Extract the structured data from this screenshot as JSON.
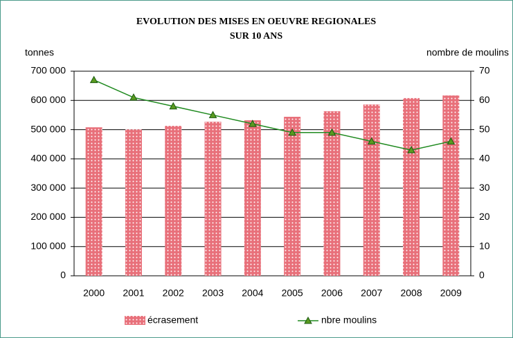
{
  "chart_data": {
    "type": "bar_line",
    "title": [
      "EVOLUTION DES MISES EN OEUVRE REGIONALES",
      "SUR 10 ANS"
    ],
    "y_label": "tonnes",
    "y2_label": "nombre de moulins",
    "categories": [
      "2000",
      "2001",
      "2002",
      "2003",
      "2004",
      "2005",
      "2006",
      "2007",
      "2008",
      "2009"
    ],
    "series": [
      {
        "name": "écrasement",
        "type": "bar",
        "color": "#e8707a",
        "values": [
          508000,
          501000,
          513000,
          527000,
          532000,
          544000,
          563000,
          586000,
          608000,
          617000
        ]
      },
      {
        "name": "nbre moulins",
        "type": "line",
        "axis": "y2",
        "color": "#1f8a1f",
        "values": [
          67,
          61,
          58,
          55,
          52,
          49,
          49,
          46,
          43,
          46
        ]
      }
    ],
    "ylim": [
      0,
      700000
    ],
    "yticks": [
      0,
      {
        "value": 100000,
        "label": "100 000"
      },
      {
        "value": 200000,
        "label": "200 000"
      },
      {
        "value": 300000,
        "label": "300 000"
      },
      {
        "value": 400000,
        "label": "400 000"
      },
      {
        "value": 500000,
        "label": "500 000"
      },
      {
        "value": 600000,
        "label": "600 000"
      },
      {
        "value": 700000,
        "label": "700 000"
      }
    ],
    "y2lim": [
      0,
      70
    ],
    "y2ticks": [
      0,
      10,
      20,
      30,
      40,
      50,
      60,
      70
    ],
    "grid": true,
    "legend": "bottom"
  }
}
